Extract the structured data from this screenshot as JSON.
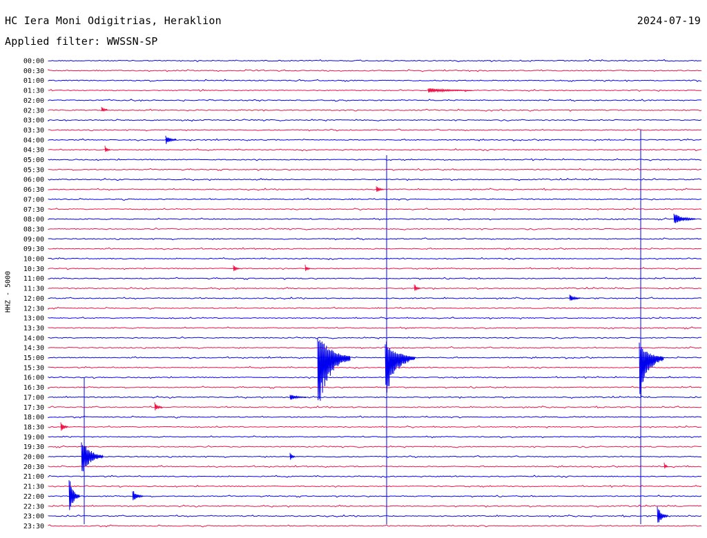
{
  "header": {
    "station": "HC Iera Moni Odigitrias, Heraklion",
    "date": "2024-07-19",
    "filter": "Applied filter: WWSSN-SP"
  },
  "chart_data": {
    "type": "line",
    "ylabel": "HHZ - 5000",
    "row_labels": [
      "00:00",
      "00:30",
      "01:00",
      "01:30",
      "02:00",
      "02:30",
      "03:00",
      "03:30",
      "04:00",
      "04:30",
      "05:00",
      "05:30",
      "06:00",
      "06:30",
      "07:00",
      "07:30",
      "08:00",
      "08:30",
      "09:00",
      "09:30",
      "10:00",
      "10:30",
      "11:00",
      "11:30",
      "12:00",
      "12:30",
      "13:00",
      "13:30",
      "14:00",
      "14:30",
      "15:00",
      "15:30",
      "16:00",
      "16:30",
      "17:00",
      "17:30",
      "18:00",
      "18:30",
      "19:00",
      "19:30",
      "20:00",
      "20:30",
      "21:00",
      "21:30",
      "22:00",
      "22:30",
      "23:00",
      "23:30"
    ],
    "trace_colors": [
      "#0000ee",
      "#ee1144"
    ],
    "colors": {
      "blue": "#0000ee",
      "red": "#ee1144"
    },
    "minutes_per_row": 30,
    "row_spacing_px": 14.35
  }
}
